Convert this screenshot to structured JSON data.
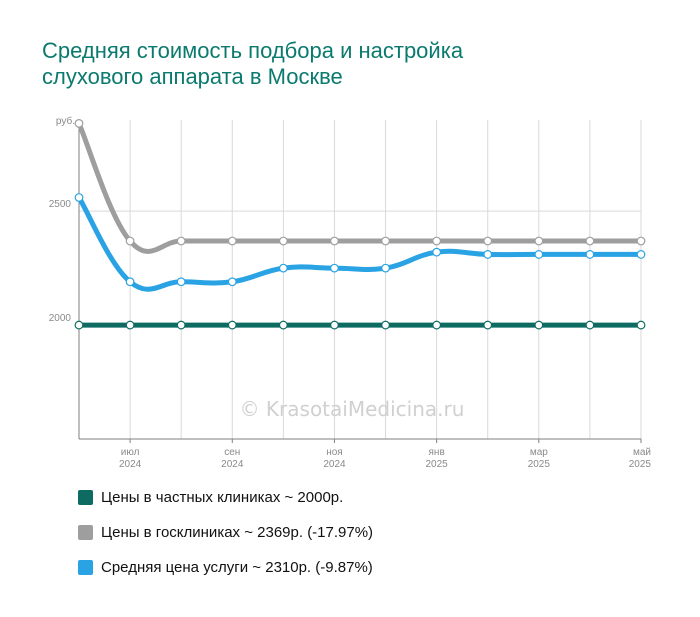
{
  "title_lines": [
    "Средняя стоимость подбора и настройка",
    "слухового аппарата в Москве"
  ],
  "watermark": "© KrasotaiMedicina.ru",
  "colors": {
    "title": "#0b7a6e",
    "private": "#0d6b62",
    "state": "#9e9e9e",
    "average": "#29a3e3",
    "grid": "#d9d9d9",
    "axis": "#7f7f7f",
    "tick_text": "#8a8a8a",
    "watermark": "#d0d0d0"
  },
  "legend": [
    {
      "label": "Цены в частных клиниках ~ 2000р.",
      "color": "#0d6b62"
    },
    {
      "label": "Цены в госклиниках ~ 2369р. (-17.97%)",
      "color": "#9e9e9e"
    },
    {
      "label": "Средняя цена услуги ~ 2310р. (-9.87%)",
      "color": "#29a3e3"
    }
  ],
  "chart_data": {
    "type": "line",
    "ylabel": "руб.",
    "ylim": [
      1500,
      2900
    ],
    "yticks": [
      2000,
      2500
    ],
    "x_index": [
      0,
      1,
      2,
      3,
      4,
      5,
      6,
      7,
      8,
      9,
      10,
      11
    ],
    "x_ticks": [
      {
        "index": 1,
        "month": "июл",
        "year": "2024"
      },
      {
        "index": 3,
        "month": "сен",
        "year": "2024"
      },
      {
        "index": 5,
        "month": "ноя",
        "year": "2024"
      },
      {
        "index": 7,
        "month": "янв",
        "year": "2025"
      },
      {
        "index": 9,
        "month": "мар",
        "year": "2025"
      },
      {
        "index": 11,
        "month": "май",
        "year": "2025"
      }
    ],
    "grid": true,
    "legend_position": "bottom",
    "series": [
      {
        "name": "Цены в частных клиниках",
        "color": "#0d6b62",
        "values": [
          2000,
          2000,
          2000,
          2000,
          2000,
          2000,
          2000,
          2000,
          2000,
          2000,
          2000,
          2000
        ]
      },
      {
        "name": "Цены в госклиниках",
        "color": "#9e9e9e",
        "values": [
          2885,
          2369,
          2369,
          2369,
          2369,
          2369,
          2369,
          2369,
          2369,
          2369,
          2369,
          2369
        ]
      },
      {
        "name": "Средняя цена услуги",
        "color": "#29a3e3",
        "values": [
          2560,
          2190,
          2190,
          2190,
          2250,
          2250,
          2250,
          2320,
          2310,
          2310,
          2310,
          2310
        ]
      }
    ]
  }
}
